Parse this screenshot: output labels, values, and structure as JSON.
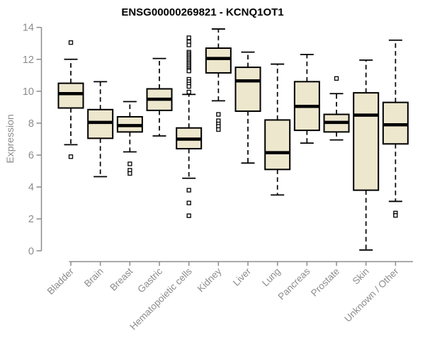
{
  "colors": {
    "background": "#ffffff",
    "axis_gray": "#8c8c8c",
    "box_fill": "#EDE7CE",
    "box_stroke": "#000000",
    "title_color": "#000000"
  },
  "chart_data": {
    "type": "box",
    "title": "ENSG00000269821 - KCNQ1OT1",
    "xlabel": "",
    "ylabel": "Expression",
    "ylim": [
      0,
      14
    ],
    "yticks": [
      0,
      2,
      4,
      6,
      8,
      10,
      12,
      14
    ],
    "grid": false,
    "legend": "none",
    "categories": [
      "Bladder",
      "Brain",
      "Breast",
      "Gastric",
      "Hematopoietic cells",
      "Kidney",
      "Liver",
      "Lung",
      "Pancreas",
      "Prostate",
      "Skin",
      "Unknown / Other"
    ],
    "series": [
      {
        "category": "Bladder",
        "low": 6.65,
        "q1": 8.95,
        "median": 9.85,
        "q3": 10.5,
        "high": 12.0,
        "outliers": [
          13.05,
          5.9
        ]
      },
      {
        "category": "Brain",
        "low": 4.65,
        "q1": 7.05,
        "median": 8.05,
        "q3": 8.85,
        "high": 10.6,
        "outliers": []
      },
      {
        "category": "Breast",
        "low": 6.2,
        "q1": 7.45,
        "median": 7.85,
        "q3": 8.4,
        "high": 9.35,
        "outliers": [
          5.45,
          5.05,
          4.85
        ]
      },
      {
        "category": "Gastric",
        "low": 7.2,
        "q1": 8.8,
        "median": 9.5,
        "q3": 10.15,
        "high": 12.05,
        "outliers": []
      },
      {
        "category": "Hematopoietic cells",
        "low": 4.55,
        "q1": 6.4,
        "median": 7.0,
        "q3": 7.7,
        "high": 9.8,
        "outliers": [
          13.35,
          13.1,
          12.9,
          12.45,
          12.35,
          12.25,
          12.15,
          12.05,
          11.95,
          11.85,
          11.75,
          11.65,
          11.55,
          11.45,
          11.35,
          11.27,
          10.75,
          10.6,
          10.45,
          10.3,
          9.95,
          3.8,
          3.0,
          2.2
        ]
      },
      {
        "category": "Kidney",
        "low": 9.4,
        "q1": 11.15,
        "median": 12.05,
        "q3": 12.7,
        "high": 13.9,
        "outliers": [
          8.55,
          8.15,
          7.95,
          7.8,
          7.6
        ]
      },
      {
        "category": "Liver",
        "low": 5.5,
        "q1": 8.75,
        "median": 10.65,
        "q3": 11.5,
        "high": 12.45,
        "outliers": []
      },
      {
        "category": "Lung",
        "low": 3.5,
        "q1": 5.1,
        "median": 6.15,
        "q3": 8.2,
        "high": 11.7,
        "outliers": []
      },
      {
        "category": "Pancreas",
        "low": 6.75,
        "q1": 7.55,
        "median": 9.05,
        "q3": 10.6,
        "high": 12.3,
        "outliers": []
      },
      {
        "category": "Prostate",
        "low": 6.95,
        "q1": 7.45,
        "median": 8.05,
        "q3": 8.55,
        "high": 9.85,
        "outliers": [
          10.8
        ]
      },
      {
        "category": "Skin",
        "low": 0.05,
        "q1": 3.8,
        "median": 8.5,
        "q3": 9.9,
        "high": 11.95,
        "outliers": []
      },
      {
        "category": "Unknown / Other",
        "low": 3.1,
        "q1": 6.7,
        "median": 7.9,
        "q3": 9.3,
        "high": 13.2,
        "outliers": [
          2.37,
          2.22
        ]
      }
    ]
  }
}
